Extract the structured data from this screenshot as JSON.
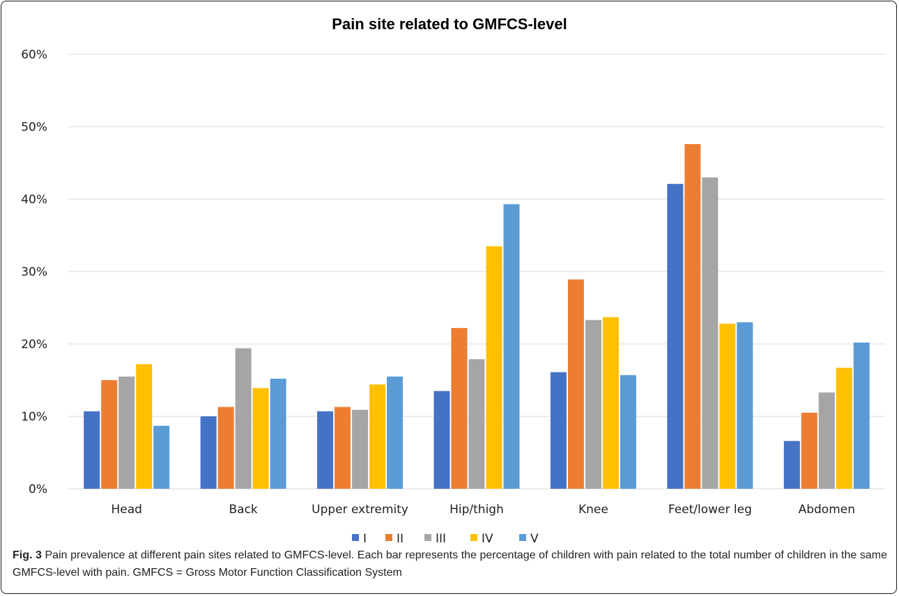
{
  "chart_data": {
    "type": "bar",
    "title": "Pain site related to GMFCS-level",
    "xlabel": "",
    "ylabel": "",
    "ylim": [
      0,
      60
    ],
    "yticks": [
      "0%",
      "10%",
      "20%",
      "30%",
      "40%",
      "50%",
      "60%"
    ],
    "grid": true,
    "legend_position": "bottom",
    "categories": [
      "Head",
      "Back",
      "Upper extremity",
      "Hip/thigh",
      "Knee",
      "Feet/lower leg",
      "Abdomen"
    ],
    "series": [
      {
        "name": "I",
        "color": "#4472C4",
        "values": [
          10.7,
          10.0,
          10.7,
          13.5,
          16.1,
          42.1,
          6.6
        ]
      },
      {
        "name": "II",
        "color": "#ED7D31",
        "values": [
          15.0,
          11.3,
          11.3,
          22.2,
          28.9,
          47.6,
          10.5
        ]
      },
      {
        "name": "III",
        "color": "#A5A5A5",
        "values": [
          15.5,
          19.4,
          10.9,
          17.9,
          23.3,
          43.0,
          13.3
        ]
      },
      {
        "name": "IV",
        "color": "#FFC000",
        "values": [
          17.2,
          13.9,
          14.4,
          33.5,
          23.7,
          22.8,
          16.7
        ]
      },
      {
        "name": "V",
        "color": "#5B9BD5",
        "values": [
          8.7,
          15.2,
          15.5,
          39.3,
          15.7,
          23.0,
          20.2
        ]
      }
    ]
  },
  "caption": {
    "label": "Fig. 3",
    "text": " Pain prevalence at different pain sites related to GMFCS-level. Each bar represents the percentage of children with pain related to the total number of children in the same GMFCS-level with pain. GMFCS = Gross Motor Function Classification System"
  }
}
